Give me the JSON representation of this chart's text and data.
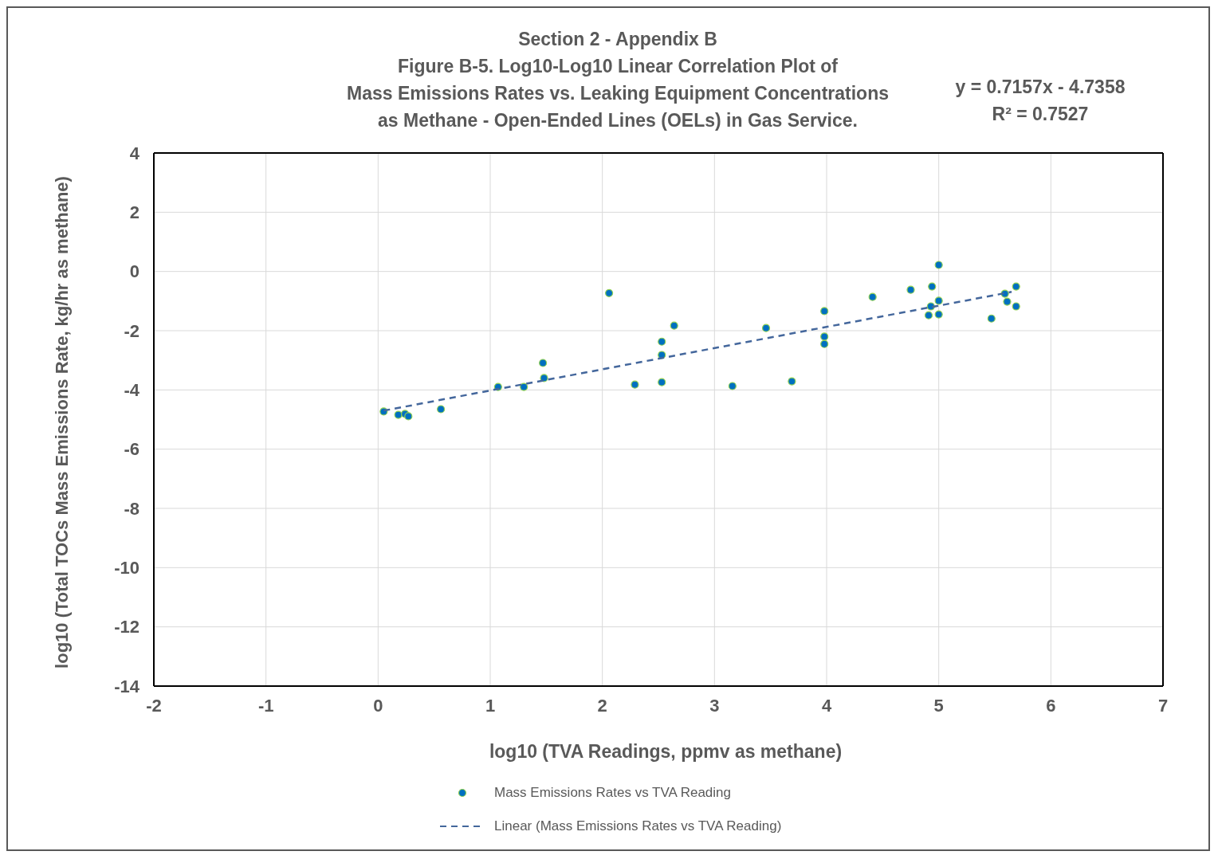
{
  "chart_data": {
    "type": "scatter",
    "title": "Section 2 - Appendix B",
    "subtitle": "Figure B-5. Log10-Log10 Linear Correlation Plot of\nMass Emissions Rates vs. Leaking Equipment Concentrations\nas Methane - Open-Ended Lines (OELs) in Gas Service.",
    "xlabel": "log10 (TVA Readings, ppmv as methane)",
    "ylabel": "log10 (Total TOCs  Mass Emissions Rate, kg/hr as methane)",
    "annotations": [
      "y = 0.7157x - 4.7358",
      "R² = 0.7527"
    ],
    "xlim": [
      -2,
      7
    ],
    "xticks": [
      -2,
      -1,
      0,
      1,
      2,
      3,
      4,
      5,
      6,
      7
    ],
    "ylim": [
      -14,
      4
    ],
    "yticks": [
      -14,
      -12,
      -10,
      -8,
      -6,
      -4,
      -2,
      0,
      2,
      4
    ],
    "grid": true,
    "legend": "bottom",
    "marker": "circle",
    "series": [
      {
        "name": "Mass Emissions Rates vs TVA Reading",
        "color": "#0070c0",
        "x": [
          0.05,
          0.18,
          0.24,
          0.27,
          0.56,
          1.07,
          1.3,
          1.47,
          1.48,
          2.06,
          2.29,
          2.53,
          2.53,
          2.53,
          2.64,
          3.16,
          3.46,
          3.69,
          3.98,
          3.98,
          3.98,
          4.41,
          4.75,
          4.94,
          4.93,
          4.91,
          5.0,
          5.0,
          5.0,
          5.47,
          5.59,
          5.61,
          5.69,
          5.69
        ],
        "values": [
          -4.73,
          -4.84,
          -4.81,
          -4.89,
          -4.65,
          -3.9,
          -3.9,
          -3.09,
          -3.6,
          -0.73,
          -3.82,
          -2.37,
          -2.82,
          -3.74,
          -1.83,
          -3.87,
          -1.91,
          -3.71,
          -1.34,
          -2.2,
          -2.45,
          -0.86,
          -0.62,
          -0.51,
          -1.18,
          -1.48,
          0.22,
          -0.99,
          -1.45,
          -1.59,
          -0.75,
          -1.02,
          -0.51,
          -1.18
        ]
      },
      {
        "name": "Linear (Mass Emissions Rates vs TVA Reading)",
        "type": "line",
        "color": "#44679c",
        "line_style": "dashed",
        "marker": "none",
        "x": [
          0.05,
          5.65
        ],
        "values": [
          -4.7,
          -0.69
        ]
      }
    ]
  }
}
